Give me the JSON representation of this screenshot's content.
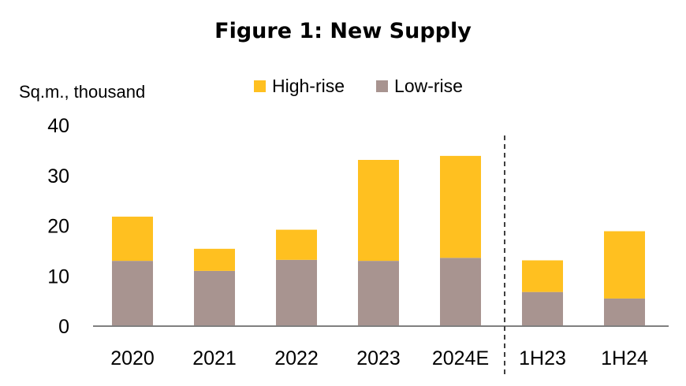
{
  "title": "Figure 1: New Supply",
  "chart_data": {
    "type": "bar",
    "stacked": true,
    "unit_label": "Sq.m., thousand",
    "categories": [
      "2020",
      "2021",
      "2022",
      "2023",
      "2024E",
      "1H23",
      "1H24"
    ],
    "series": [
      {
        "name": "Low-rise",
        "color": "#A89490",
        "values": [
          13.0,
          11.0,
          13.2,
          13.0,
          13.6,
          6.8,
          5.5
        ]
      },
      {
        "name": "High-rise",
        "color": "#FFC020",
        "values": [
          8.8,
          4.4,
          6.0,
          20.1,
          20.3,
          6.3,
          13.4
        ]
      }
    ],
    "legend_order": [
      "High-rise",
      "Low-rise"
    ],
    "ylim": [
      0,
      40
    ],
    "yticks": [
      0,
      10,
      20,
      30,
      40
    ],
    "grid": false,
    "legend_position": "top",
    "divider_after_category": "2024E"
  }
}
